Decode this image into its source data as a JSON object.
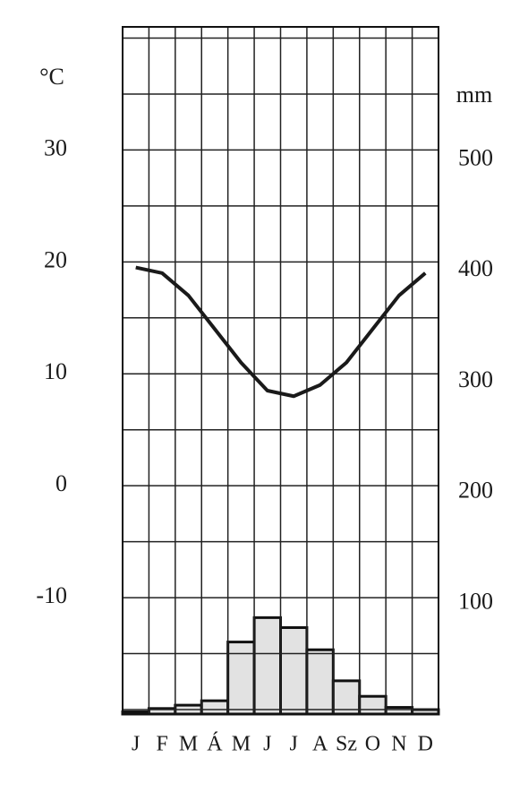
{
  "chart_data": {
    "type": "climate",
    "categories": [
      "J",
      "F",
      "M",
      "Á",
      "M",
      "J",
      "J",
      "A",
      "Sz",
      "O",
      "N",
      "D"
    ],
    "y_unit": "°C",
    "y2_unit": "mm",
    "ylim": [
      -20.4,
      41
    ],
    "yticks": [
      -10,
      0,
      10,
      20,
      30
    ],
    "ygrid": [
      -20,
      -15,
      -5,
      5,
      15,
      25,
      35,
      40
    ],
    "y2lim": [
      0,
      620
    ],
    "y2ticks": [
      100,
      200,
      300,
      400,
      500
    ],
    "grid": true,
    "series": [
      {
        "name": "temperature",
        "type": "line",
        "color": "#1a1a1a",
        "values": [
          19.5,
          19,
          17,
          14,
          11,
          8.5,
          8,
          9,
          11,
          14,
          17,
          19
        ]
      },
      {
        "name": "precipitation",
        "type": "bar",
        "axis": "y2",
        "color": "#e2e2e2",
        "values": [
          2,
          5,
          8,
          12,
          65,
          87,
          78,
          58,
          30,
          16,
          6,
          4
        ]
      }
    ]
  }
}
